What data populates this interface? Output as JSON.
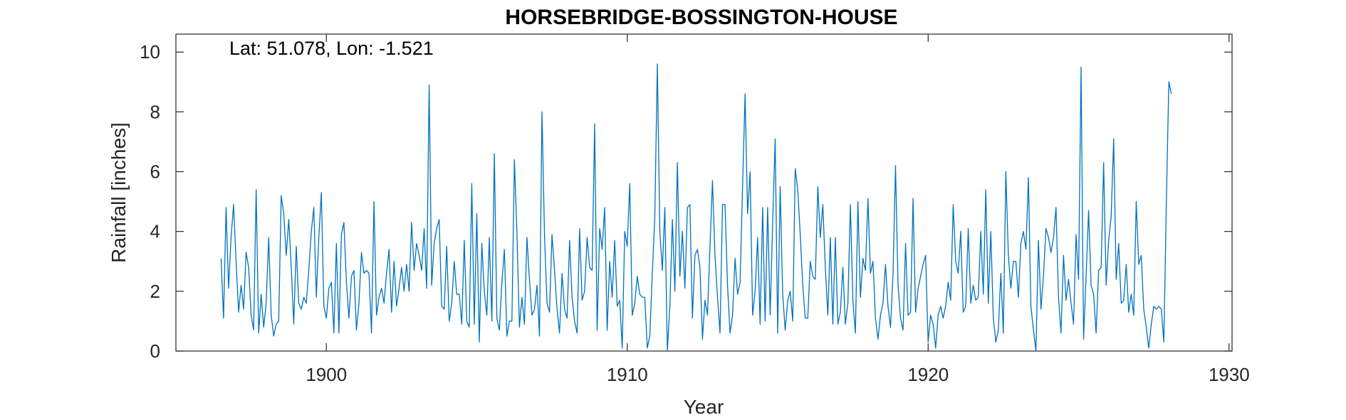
{
  "chart_data": {
    "type": "line",
    "title": "HORSEBRIDGE-BOSSINGTON-HOUSE",
    "xlabel": "Year",
    "ylabel": "Rainfall [inches]",
    "annotation": "Lat: 51.078, Lon: -1.521",
    "xlim": [
      1895,
      1930.1
    ],
    "ylim": [
      0,
      10.6
    ],
    "xticks": [
      1900,
      1910,
      1920,
      1930
    ],
    "yticks": [
      0,
      2,
      4,
      6,
      8,
      10
    ],
    "grid": false,
    "series_color": "#0072BD",
    "series": [
      {
        "start": 1896.5,
        "step": 0.08333,
        "values": [
          3.1,
          1.1,
          4.8,
          2.1,
          3.8,
          4.9,
          3.0,
          1.3,
          2.2,
          1.4,
          3.3,
          2.8,
          1.2,
          0.7,
          5.4,
          0.6,
          1.9,
          0.8,
          1.6,
          3.8,
          1.2,
          0.5,
          0.9,
          1.0,
          5.2,
          4.6,
          3.2,
          4.4,
          2.8,
          0.9,
          3.5,
          1.6,
          1.4,
          1.8,
          1.6,
          2.7,
          4.0,
          4.8,
          1.8,
          3.8,
          5.3,
          1.5,
          1.1,
          2.1,
          2.3,
          0.6,
          3.6,
          0.6,
          3.9,
          4.3,
          2.3,
          1.1,
          2.5,
          2.7,
          0.7,
          1.6,
          3.3,
          2.6,
          2.7,
          2.6,
          0.6,
          5.0,
          1.2,
          1.8,
          2.1,
          1.6,
          2.6,
          3.4,
          1.3,
          3.0,
          1.5,
          2.1,
          2.8,
          2.0,
          2.9,
          2.0,
          4.3,
          2.7,
          3.6,
          3.2,
          2.7,
          4.1,
          2.1,
          8.9,
          2.2,
          3.6,
          4.1,
          4.4,
          1.5,
          1.4,
          3.5,
          1.0,
          1.6,
          3.0,
          1.9,
          1.9,
          0.9,
          3.7,
          1.0,
          0.8,
          5.6,
          0.9,
          4.6,
          0.3,
          3.6,
          2.0,
          1.2,
          3.8,
          1.0,
          6.6,
          1.1,
          0.7,
          2.3,
          3.4,
          0.5,
          1.0,
          1.0,
          6.4,
          4.0,
          0.8,
          1.8,
          0.9,
          3.8,
          2.4,
          1.2,
          1.4,
          2.2,
          0.5,
          8.0,
          3.9,
          1.6,
          1.3,
          3.9,
          2.7,
          1.4,
          0.6,
          2.6,
          1.4,
          1.1,
          3.7,
          1.8,
          1.0,
          0.6,
          4.1,
          1.7,
          2.0,
          3.8,
          2.8,
          2.7,
          7.6,
          0.7,
          4.1,
          3.4,
          4.8,
          0.7,
          3.0,
          1.8,
          3.7,
          1.5,
          1.7,
          0.1,
          4.0,
          3.5,
          5.6,
          1.2,
          1.6,
          2.5,
          1.9,
          1.8,
          1.8,
          0.1,
          0.5,
          2.6,
          4.5,
          9.6,
          4.0,
          2.7,
          4.8,
          0.0,
          1.5,
          4.4,
          2.0,
          6.3,
          2.5,
          4.0,
          2.1,
          4.8,
          4.9,
          1.1,
          3.2,
          3.4,
          2.8,
          0.4,
          1.7,
          1.2,
          3.5,
          5.7,
          3.2,
          1.8,
          0.6,
          4.9,
          4.9,
          2.2,
          0.6,
          1.2,
          3.1,
          1.9,
          2.3,
          5.5,
          8.6,
          4.6,
          6.0,
          1.2,
          2.0,
          3.8,
          0.9,
          4.8,
          1.0,
          4.8,
          1.2,
          4.3,
          7.1,
          0.6,
          5.5,
          1.9,
          0.7,
          1.7,
          2.0,
          1.0,
          6.1,
          5.4,
          3.9,
          2.2,
          1.1,
          1.1,
          3.0,
          2.5,
          2.4,
          5.5,
          3.8,
          4.9,
          2.8,
          1.2,
          3.8,
          0.9,
          3.8,
          0.9,
          1.3,
          2.8,
          0.9,
          1.6,
          4.9,
          1.7,
          0.6,
          5.0,
          1.8,
          3.1,
          2.7,
          5.1,
          2.6,
          3.0,
          1.1,
          0.4,
          1.2,
          1.6,
          2.9,
          1.5,
          0.8,
          2.6,
          6.2,
          2.2,
          1.1,
          0.7,
          3.6,
          1.2,
          1.3,
          5.1,
          1.3,
          2.1,
          2.5,
          2.9,
          3.2,
          0.3,
          1.2,
          0.9,
          0.1,
          1.2,
          1.5,
          1.1,
          1.5,
          2.3,
          1.7,
          4.9,
          3.0,
          2.6,
          4.0,
          1.3,
          1.5,
          4.1,
          1.6,
          2.2,
          1.7,
          1.8,
          4.0,
          1.9,
          5.4,
          1.6,
          4.0,
          1.1,
          0.3,
          0.7,
          2.6,
          0.6,
          6.0,
          3.2,
          2.1,
          3.0,
          3.0,
          1.8,
          3.6,
          4.0,
          3.4,
          5.8,
          1.5,
          0.7,
          0.0,
          3.7,
          1.4,
          2.5,
          4.1,
          3.8,
          3.3,
          3.8,
          4.8,
          1.8,
          0.6,
          3.2,
          1.7,
          2.4,
          1.6,
          0.9,
          3.9,
          2.4,
          9.5,
          0.4,
          2.5,
          4.7,
          2.2,
          1.9,
          0.6,
          2.7,
          2.8,
          6.3,
          2.2,
          3.7,
          4.5,
          7.1,
          2.4,
          3.6,
          1.6,
          1.7,
          2.9,
          1.3,
          1.9,
          1.2,
          5.0,
          2.9,
          3.2,
          1.4,
          0.8,
          0.1,
          0.9,
          1.5,
          1.4,
          1.5,
          1.4,
          0.3,
          4.9,
          9.0,
          8.6
        ]
      }
    ]
  }
}
